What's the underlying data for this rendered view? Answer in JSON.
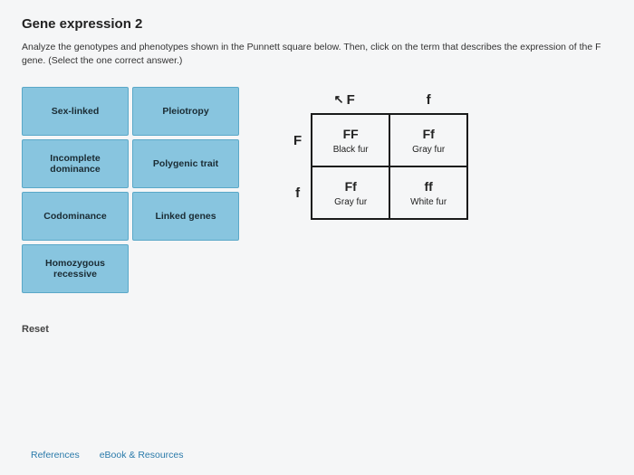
{
  "title": "Gene expression 2",
  "instructions": "Analyze the genotypes and phenotypes shown in the Punnett square below. Then, click on the term that describes the expression of the F gene. (Select the one correct answer.)",
  "options": [
    "Sex-linked",
    "Pleiotropy",
    "Incomplete dominance",
    "Polygenic trait",
    "Codominance",
    "Linked genes",
    "Homozygous recessive"
  ],
  "punnett": {
    "col_headers": [
      "F",
      "f"
    ],
    "row_headers": [
      "F",
      "f"
    ],
    "cells": [
      [
        {
          "genotype": "FF",
          "phenotype": "Black fur"
        },
        {
          "genotype": "Ff",
          "phenotype": "Gray fur"
        }
      ],
      [
        {
          "genotype": "Ff",
          "phenotype": "Gray fur"
        },
        {
          "genotype": "ff",
          "phenotype": "White fur"
        }
      ]
    ],
    "cursor_label": "F",
    "border_color": "#1a1a1a"
  },
  "reset_label": "Reset",
  "footer": {
    "references": "References",
    "ebook": "eBook & Resources"
  },
  "style": {
    "option_bg": "#88c5df",
    "option_border": "#5aa8c8",
    "page_bg": "#f5f6f7"
  }
}
